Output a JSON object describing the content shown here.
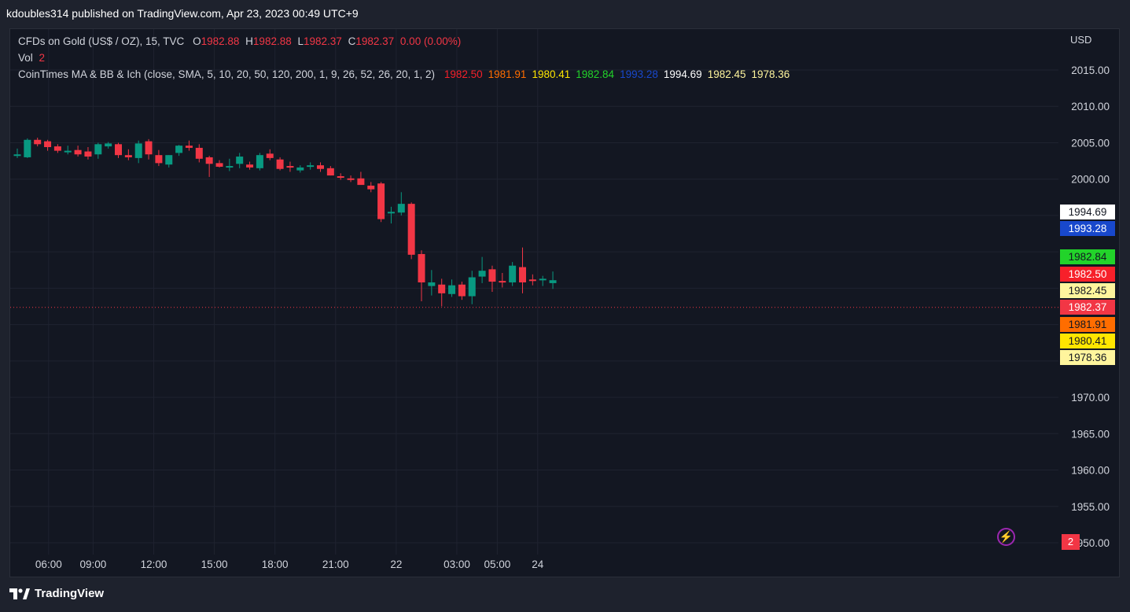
{
  "header": {
    "published_line": "kdoubles314 published on TradingView.com, Apr 23, 2023 00:49 UTC+9"
  },
  "legend": {
    "symbol": "CFDs on Gold (US$ / OZ), 15, TVC",
    "o_label": "O",
    "o_value": "1982.88",
    "h_label": "H",
    "h_value": "1982.88",
    "l_label": "L",
    "l_value": "1982.37",
    "c_label": "C",
    "c_value": "1982.37",
    "change": "0.00 (0.00%)",
    "vol_label": "Vol",
    "vol_value": "2",
    "indicator_label": "CoinTimes MA & BB & Ich (close, SMA, 5, 10, 20, 50, 120, 200, 1, 9, 26, 52, 26, 20, 1, 2)",
    "indicator_values": [
      {
        "value": "1982.50",
        "color": "#f7202a"
      },
      {
        "value": "1981.91",
        "color": "#ff6d00"
      },
      {
        "value": "1980.41",
        "color": "#ffe600"
      },
      {
        "value": "1982.84",
        "color": "#22d32a"
      },
      {
        "value": "1993.28",
        "color": "#1848cc"
      },
      {
        "value": "1994.69",
        "color": "#ffffff"
      },
      {
        "value": "1982.45",
        "color": "#fff59d"
      },
      {
        "value": "1978.36",
        "color": "#fff59d"
      }
    ]
  },
  "price_scale": {
    "currency": "USD"
  },
  "price_tags": [
    {
      "value": "1994.69",
      "bg": "#ffffff",
      "fg": "#131722"
    },
    {
      "value": "1993.28",
      "bg": "#1848cc",
      "fg": "#ffffff"
    },
    {
      "value": "1982.84",
      "bg": "#22d32a",
      "fg": "#131722"
    },
    {
      "value": "1982.50",
      "bg": "#f7202a",
      "fg": "#ffffff"
    },
    {
      "value": "1982.45",
      "bg": "#fff59d",
      "fg": "#131722"
    },
    {
      "value": "1982.37",
      "bg": "#f23645",
      "fg": "#ffffff"
    },
    {
      "value": "1981.91",
      "bg": "#ff6d00",
      "fg": "#131722"
    },
    {
      "value": "1980.41",
      "bg": "#ffe600",
      "fg": "#131722"
    },
    {
      "value": "1978.36",
      "bg": "#fff59d",
      "fg": "#131722"
    }
  ],
  "volume_badge": "2",
  "footer": {
    "brand": "TradingView"
  },
  "colors": {
    "up": "#089981",
    "down": "#f23645",
    "grid": "#1f2330",
    "bg": "#131722",
    "axis_text": "#d1d4dc"
  },
  "chart_data": {
    "type": "candlestick",
    "title": "CFDs on Gold (US$ / OZ), 15, TVC",
    "y_ticks": [
      "2015.00",
      "2010.00",
      "2005.00",
      "2000.00",
      "1970.00",
      "1965.00",
      "1960.00",
      "1955.00",
      "1950.00"
    ],
    "y_tick_values": [
      2015,
      2010,
      2005,
      2000,
      1970,
      1965,
      1960,
      1955,
      1950
    ],
    "ylim": [
      1949,
      2019
    ],
    "x_tick_labels": [
      "06:00",
      "09:00",
      "12:00",
      "15:00",
      "18:00",
      "21:00",
      "22",
      "03:00",
      "05:00",
      "24"
    ],
    "x_tick_index": [
      3.1,
      7.5,
      13.5,
      19.5,
      25.5,
      31.5,
      37.5,
      43.5,
      47.5,
      51.5
    ],
    "last_price": 1982.37,
    "grid": true,
    "candles": [
      {
        "o": 2003.2,
        "h": 2004.2,
        "l": 2002.9,
        "c": 2003.4
      },
      {
        "o": 2003.0,
        "h": 2005.6,
        "l": 2002.9,
        "c": 2005.4
      },
      {
        "o": 2005.4,
        "h": 2005.7,
        "l": 2004.5,
        "c": 2004.8
      },
      {
        "o": 2005.2,
        "h": 2005.4,
        "l": 2003.9,
        "c": 2004.4
      },
      {
        "o": 2004.5,
        "h": 2004.8,
        "l": 2003.6,
        "c": 2003.9
      },
      {
        "o": 2003.9,
        "h": 2004.6,
        "l": 2003.4,
        "c": 2003.9
      },
      {
        "o": 2004.0,
        "h": 2004.6,
        "l": 2003.1,
        "c": 2003.4
      },
      {
        "o": 2003.8,
        "h": 2004.4,
        "l": 2002.7,
        "c": 2003.1
      },
      {
        "o": 2003.4,
        "h": 2005.0,
        "l": 2002.8,
        "c": 2004.8
      },
      {
        "o": 2004.5,
        "h": 2005.1,
        "l": 2004.2,
        "c": 2004.9
      },
      {
        "o": 2004.8,
        "h": 2005.0,
        "l": 2002.9,
        "c": 2003.3
      },
      {
        "o": 2003.3,
        "h": 2004.1,
        "l": 2002.6,
        "c": 2003.0
      },
      {
        "o": 2002.9,
        "h": 2005.3,
        "l": 2002.2,
        "c": 2004.9
      },
      {
        "o": 2005.2,
        "h": 2005.5,
        "l": 2002.7,
        "c": 2003.4
      },
      {
        "o": 2003.3,
        "h": 2004.0,
        "l": 2001.8,
        "c": 2002.2
      },
      {
        "o": 2002.0,
        "h": 2003.3,
        "l": 2001.6,
        "c": 2003.3
      },
      {
        "o": 2003.6,
        "h": 2004.7,
        "l": 2003.2,
        "c": 2004.6
      },
      {
        "o": 2004.6,
        "h": 2005.3,
        "l": 2003.9,
        "c": 2004.3
      },
      {
        "o": 2004.3,
        "h": 2004.8,
        "l": 2002.3,
        "c": 2002.8
      },
      {
        "o": 2003.0,
        "h": 2003.2,
        "l": 2000.3,
        "c": 2002.1
      },
      {
        "o": 2002.2,
        "h": 2002.6,
        "l": 2001.6,
        "c": 2001.7
      },
      {
        "o": 2001.8,
        "h": 2002.8,
        "l": 2001.1,
        "c": 2001.8
      },
      {
        "o": 2002.1,
        "h": 2003.6,
        "l": 2001.5,
        "c": 2003.1
      },
      {
        "o": 2002.0,
        "h": 2002.4,
        "l": 2001.3,
        "c": 2001.6
      },
      {
        "o": 2001.5,
        "h": 2003.6,
        "l": 2001.2,
        "c": 2003.3
      },
      {
        "o": 2003.5,
        "h": 2004.1,
        "l": 2002.6,
        "c": 2002.9
      },
      {
        "o": 2002.7,
        "h": 2003.0,
        "l": 2001.2,
        "c": 2001.4
      },
      {
        "o": 2001.8,
        "h": 2002.4,
        "l": 2001.0,
        "c": 2001.6
      },
      {
        "o": 2001.2,
        "h": 2001.9,
        "l": 2000.9,
        "c": 2001.6
      },
      {
        "o": 2001.7,
        "h": 2002.3,
        "l": 2001.3,
        "c": 2001.9
      },
      {
        "o": 2001.9,
        "h": 2002.3,
        "l": 2001.0,
        "c": 2001.4
      },
      {
        "o": 2001.5,
        "h": 2001.8,
        "l": 2000.5,
        "c": 2000.5
      },
      {
        "o": 2000.4,
        "h": 2000.8,
        "l": 1999.9,
        "c": 2000.2
      },
      {
        "o": 2000.1,
        "h": 2000.5,
        "l": 1999.6,
        "c": 1999.9
      },
      {
        "o": 2000.1,
        "h": 2001.0,
        "l": 1999.5,
        "c": 1999.2
      },
      {
        "o": 1999.1,
        "h": 1999.6,
        "l": 1998.2,
        "c": 1998.6
      },
      {
        "o": 1999.4,
        "h": 1999.6,
        "l": 1994.1,
        "c": 1994.5
      },
      {
        "o": 1995.3,
        "h": 1996.2,
        "l": 1993.9,
        "c": 1995.5
      },
      {
        "o": 1995.4,
        "h": 1998.2,
        "l": 1995.0,
        "c": 1996.6
      },
      {
        "o": 1996.6,
        "h": 1996.8,
        "l": 1989.0,
        "c": 1989.6
      },
      {
        "o": 1989.7,
        "h": 1990.2,
        "l": 1983.2,
        "c": 1985.8
      },
      {
        "o": 1985.3,
        "h": 1987.5,
        "l": 1984.0,
        "c": 1985.8
      },
      {
        "o": 1985.5,
        "h": 1986.3,
        "l": 1982.5,
        "c": 1984.3
      },
      {
        "o": 1984.2,
        "h": 1986.2,
        "l": 1983.8,
        "c": 1985.4
      },
      {
        "o": 1985.5,
        "h": 1985.9,
        "l": 1983.4,
        "c": 1983.9
      },
      {
        "o": 1983.9,
        "h": 1987.4,
        "l": 1982.8,
        "c": 1986.5
      },
      {
        "o": 1986.6,
        "h": 1989.3,
        "l": 1985.7,
        "c": 1987.4
      },
      {
        "o": 1987.6,
        "h": 1988.1,
        "l": 1984.5,
        "c": 1985.9
      },
      {
        "o": 1986.0,
        "h": 1987.1,
        "l": 1985.1,
        "c": 1985.9
      },
      {
        "o": 1985.8,
        "h": 1988.6,
        "l": 1985.3,
        "c": 1988.1
      },
      {
        "o": 1987.9,
        "h": 1990.6,
        "l": 1984.3,
        "c": 1985.8
      },
      {
        "o": 1986.2,
        "h": 1986.9,
        "l": 1985.4,
        "c": 1986.0
      },
      {
        "o": 1986.2,
        "h": 1986.7,
        "l": 1985.3,
        "c": 1986.3
      },
      {
        "o": 1985.7,
        "h": 1987.3,
        "l": 1984.9,
        "c": 1986.1
      }
    ]
  }
}
